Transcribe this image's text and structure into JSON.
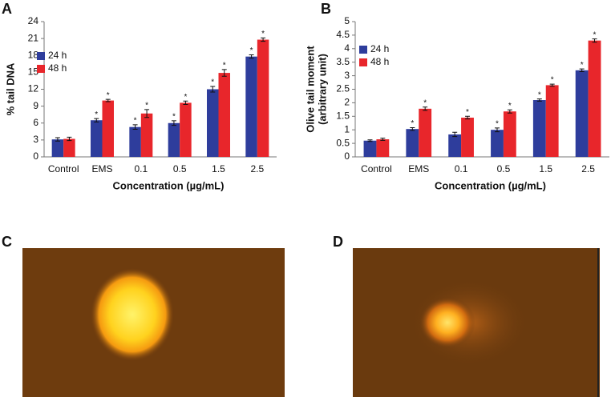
{
  "chart_data": [
    {
      "type": "bar",
      "panel_label": "A",
      "x_label": "Concentration (µg/mL)",
      "y_label": [
        "% tail DNA"
      ],
      "categories": [
        "Control",
        "EMS",
        "0.1",
        "0.5",
        "1.5",
        "2.5"
      ],
      "series": [
        {
          "name": "24 h",
          "color": "#2e3d9c",
          "values": [
            3.1,
            6.5,
            5.3,
            6.0,
            12.0,
            17.8
          ],
          "errors": [
            0.3,
            0.3,
            0.4,
            0.4,
            0.5,
            0.3
          ],
          "annotations": [
            null,
            "*",
            "*",
            "*",
            "*",
            "*"
          ]
        },
        {
          "name": "48 h",
          "color": "#e8262b",
          "values": [
            3.2,
            10.0,
            7.7,
            9.6,
            14.9,
            20.8
          ],
          "errors": [
            0.3,
            0.2,
            0.7,
            0.3,
            0.6,
            0.3
          ],
          "annotations": [
            null,
            "*",
            "*",
            "*",
            "*",
            "*"
          ]
        }
      ],
      "ylim": [
        0,
        24
      ],
      "yticks": [
        0,
        3,
        6,
        9,
        12,
        15,
        18,
        21,
        24
      ],
      "grid": false,
      "legend": "upper-left"
    },
    {
      "type": "bar",
      "panel_label": "B",
      "x_label": "Concentration (µg/mL)",
      "y_label": [
        "Olive tail moment",
        "(arbitrary unit)"
      ],
      "categories": [
        "Control",
        "EMS",
        "0.1",
        "0.5",
        "1.5",
        "2.5"
      ],
      "series": [
        {
          "name": "24 h",
          "color": "#2e3d9c",
          "values": [
            0.6,
            1.03,
            0.83,
            1.0,
            2.1,
            3.2
          ],
          "errors": [
            0.03,
            0.05,
            0.08,
            0.07,
            0.04,
            0.05
          ],
          "annotations": [
            null,
            "*",
            null,
            "*",
            "*",
            "*"
          ]
        },
        {
          "name": "48 h",
          "color": "#e8262b",
          "values": [
            0.65,
            1.78,
            1.45,
            1.68,
            2.65,
            4.3
          ],
          "errors": [
            0.04,
            0.06,
            0.05,
            0.06,
            0.04,
            0.06
          ],
          "annotations": [
            null,
            "*",
            "*",
            "*",
            "*",
            "*"
          ]
        }
      ],
      "ylim": [
        0,
        5
      ],
      "yticks": [
        0,
        0.5,
        1,
        1.5,
        2,
        2.5,
        3,
        3.5,
        4,
        4.5,
        5
      ],
      "grid": false,
      "legend": "upper-left"
    }
  ],
  "images": [
    {
      "panel_label": "C"
    },
    {
      "panel_label": "D"
    }
  ]
}
